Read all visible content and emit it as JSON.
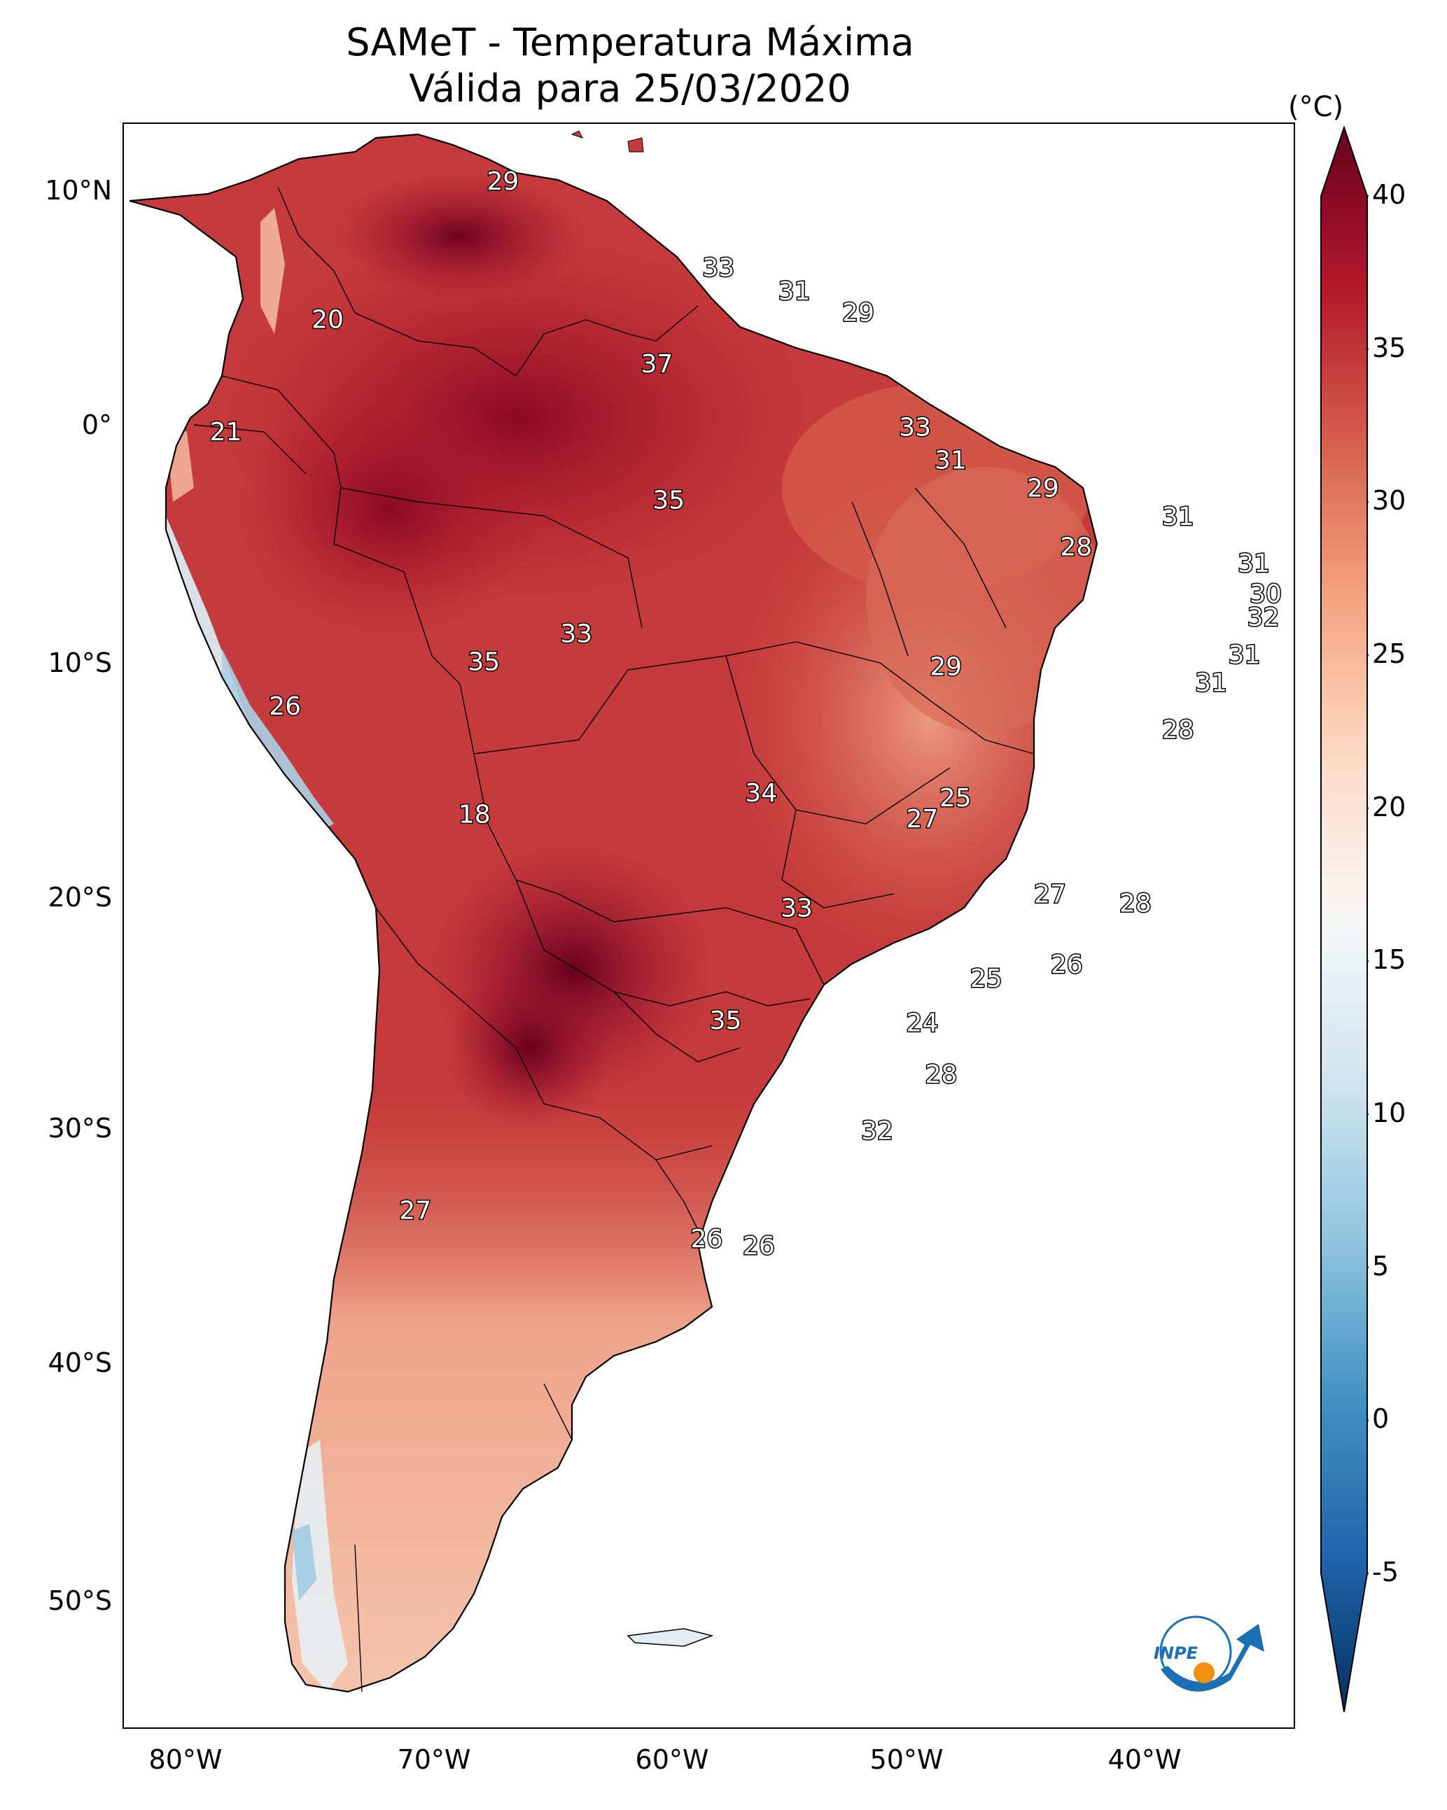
{
  "title": {
    "line1": "SAMeT - Temperatura Máxima",
    "line2": "Válida para 25/03/2020"
  },
  "axes": {
    "lat_ticks": [
      "10°N",
      "0°",
      "10°S",
      "20°S",
      "30°S",
      "40°S",
      "50°S"
    ],
    "lon_ticks": [
      "80°W",
      "70°W",
      "60°W",
      "50°W",
      "40°W"
    ]
  },
  "colorbar": {
    "unit": "(°C)",
    "ticks": [
      "40",
      "35",
      "30",
      "25",
      "20",
      "15",
      "10",
      "5",
      "0",
      "-5"
    ],
    "range": [
      -5,
      40
    ],
    "extend": "both",
    "colormap": "RdBu_r",
    "colors": [
      "#053061",
      "#2166ac",
      "#4393c3",
      "#92c5de",
      "#d1e5f0",
      "#f7f7f7",
      "#fddbc7",
      "#f4a582",
      "#d6604d",
      "#b2182b",
      "#67001f"
    ]
  },
  "station_labels": [
    {
      "value": "29",
      "lon": -67,
      "lat": 10.5
    },
    {
      "value": "33",
      "lon": -57.9,
      "lat": 6.8
    },
    {
      "value": "31",
      "lon": -54.7,
      "lat": 5.8
    },
    {
      "value": "29",
      "lon": -52,
      "lat": 4.9
    },
    {
      "value": "20",
      "lon": -74.4,
      "lat": 4.6
    },
    {
      "value": "37",
      "lon": -60.5,
      "lat": 2.7
    },
    {
      "value": "21",
      "lon": -78.7,
      "lat": -0.2
    },
    {
      "value": "33",
      "lon": -49.6,
      "lat": 0
    },
    {
      "value": "31",
      "lon": -48.1,
      "lat": -1.4
    },
    {
      "value": "29",
      "lon": -44.2,
      "lat": -2.6
    },
    {
      "value": "35",
      "lon": -60,
      "lat": -3.1
    },
    {
      "value": "31",
      "lon": -38.5,
      "lat": -3.8
    },
    {
      "value": "28",
      "lon": -42.8,
      "lat": -5.1
    },
    {
      "value": "31",
      "lon": -35.3,
      "lat": -5.8
    },
    {
      "value": "30",
      "lon": -34.8,
      "lat": -7.1
    },
    {
      "value": "32",
      "lon": -34.9,
      "lat": -8.1
    },
    {
      "value": "33",
      "lon": -63.9,
      "lat": -8.8
    },
    {
      "value": "31",
      "lon": -35.7,
      "lat": -9.7
    },
    {
      "value": "35",
      "lon": -67.8,
      "lat": -10
    },
    {
      "value": "29",
      "lon": -48.3,
      "lat": -10.2
    },
    {
      "value": "31",
      "lon": -37.1,
      "lat": -10.9
    },
    {
      "value": "26",
      "lon": -76.2,
      "lat": -11.9
    },
    {
      "value": "28",
      "lon": -38.5,
      "lat": -12.9
    },
    {
      "value": "34",
      "lon": -56.1,
      "lat": -15.6
    },
    {
      "value": "25",
      "lon": -47.9,
      "lat": -15.8
    },
    {
      "value": "27",
      "lon": -49.3,
      "lat": -16.7
    },
    {
      "value": "18",
      "lon": -68.2,
      "lat": -16.5
    },
    {
      "value": "27",
      "lon": -43.9,
      "lat": -19.9
    },
    {
      "value": "28",
      "lon": -40.3,
      "lat": -20.3
    },
    {
      "value": "33",
      "lon": -54.6,
      "lat": -20.5
    },
    {
      "value": "26",
      "lon": -43.2,
      "lat": -22.9
    },
    {
      "value": "25",
      "lon": -46.6,
      "lat": -23.5
    },
    {
      "value": "35",
      "lon": -57.6,
      "lat": -25.3
    },
    {
      "value": "24",
      "lon": -49.3,
      "lat": -25.4
    },
    {
      "value": "28",
      "lon": -48.5,
      "lat": -27.6
    },
    {
      "value": "32",
      "lon": -51.2,
      "lat": -30
    },
    {
      "value": "27",
      "lon": -70.7,
      "lat": -33.4
    },
    {
      "value": "26",
      "lon": -58.4,
      "lat": -34.6
    },
    {
      "value": "26",
      "lon": -56.2,
      "lat": -34.9
    }
  ],
  "logo": {
    "text": "INPE",
    "colors": {
      "blue": "#1a6fb5",
      "orange": "#f29111"
    }
  }
}
